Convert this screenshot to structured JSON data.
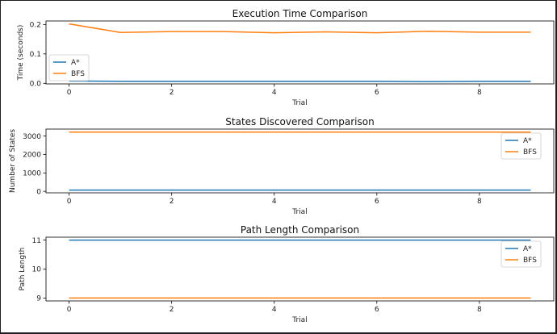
{
  "colors": {
    "astar": "#1f77b4",
    "bfs": "#ff7f0e"
  },
  "chart_data": [
    {
      "type": "line",
      "title": "Execution Time Comparison",
      "xlabel": "Trial",
      "ylabel": "Time (seconds)",
      "x": [
        0,
        1,
        2,
        3,
        4,
        5,
        6,
        7,
        8,
        9
      ],
      "xticks": [
        0,
        2,
        4,
        6,
        8
      ],
      "xlim": [
        -0.45,
        9.45
      ],
      "ylim": [
        -0.002,
        0.212
      ],
      "yticks": [
        0.0,
        0.1,
        0.2
      ],
      "ytick_labels": [
        "0.0",
        "0.1",
        "0.2"
      ],
      "legend": "lower-left",
      "grid": false,
      "series": [
        {
          "name": "A*",
          "values": [
            0.008,
            0.007,
            0.007,
            0.007,
            0.007,
            0.007,
            0.007,
            0.006,
            0.007,
            0.007
          ]
        },
        {
          "name": "BFS",
          "values": [
            0.202,
            0.173,
            0.176,
            0.176,
            0.172,
            0.175,
            0.172,
            0.177,
            0.174,
            0.174
          ]
        }
      ]
    },
    {
      "type": "line",
      "title": "States Discovered Comparison",
      "xlabel": "Trial",
      "ylabel": "Number of States",
      "x": [
        0,
        1,
        2,
        3,
        4,
        5,
        6,
        7,
        8,
        9
      ],
      "xticks": [
        0,
        2,
        4,
        6,
        8
      ],
      "xlim": [
        -0.45,
        9.45
      ],
      "ylim": [
        -80,
        3380
      ],
      "yticks": [
        0,
        1000,
        2000,
        3000
      ],
      "ytick_labels": [
        "0",
        "1000",
        "2000",
        "3000"
      ],
      "legend": "upper-right",
      "grid": false,
      "series": [
        {
          "name": "A*",
          "values": [
            70,
            70,
            70,
            70,
            70,
            70,
            70,
            70,
            70,
            70
          ]
        },
        {
          "name": "BFS",
          "values": [
            3220,
            3220,
            3220,
            3220,
            3220,
            3220,
            3220,
            3220,
            3220,
            3220
          ]
        }
      ]
    },
    {
      "type": "line",
      "title": "Path Length Comparison",
      "xlabel": "Trial",
      "ylabel": "Path Length",
      "x": [
        0,
        1,
        2,
        3,
        4,
        5,
        6,
        7,
        8,
        9
      ],
      "xticks": [
        0,
        2,
        4,
        6,
        8
      ],
      "xlim": [
        -0.45,
        9.45
      ],
      "ylim": [
        8.9,
        11.1
      ],
      "yticks": [
        9,
        10,
        11
      ],
      "ytick_labels": [
        "9",
        "10",
        "11"
      ],
      "legend": "upper-right",
      "grid": false,
      "series": [
        {
          "name": "A*",
          "values": [
            11,
            11,
            11,
            11,
            11,
            11,
            11,
            11,
            11,
            11
          ]
        },
        {
          "name": "BFS",
          "values": [
            9,
            9,
            9,
            9,
            9,
            9,
            9,
            9,
            9,
            9
          ]
        }
      ]
    }
  ]
}
